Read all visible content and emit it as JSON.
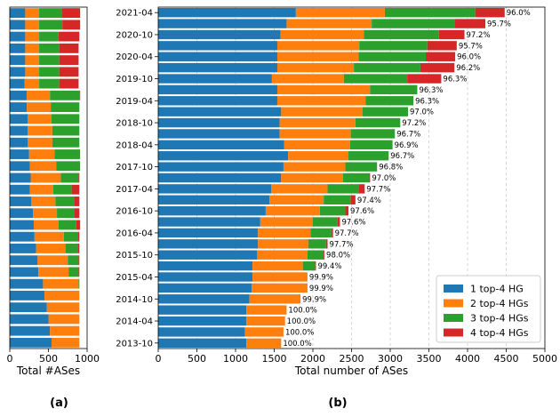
{
  "chart_data": [
    {
      "type": "bar",
      "orientation": "horizontal",
      "stacked": true,
      "xlabel": "Total #ASes",
      "xlim": [
        0,
        1000
      ],
      "xticks": [
        "0",
        "500",
        "1000"
      ],
      "panel_label": "(a)",
      "colors": [
        "#1f77b4",
        "#ff7f0e",
        "#2ca02c",
        "#d62728"
      ],
      "rows_top_to_bottom": [
        [
          200,
          180,
          290,
          240
        ],
        [
          200,
          180,
          300,
          230
        ],
        [
          200,
          180,
          250,
          270
        ],
        [
          200,
          180,
          260,
          250
        ],
        [
          200,
          180,
          260,
          250
        ],
        [
          200,
          180,
          260,
          250
        ],
        [
          190,
          190,
          260,
          250
        ],
        [
          220,
          300,
          380,
          10
        ],
        [
          220,
          310,
          370,
          0
        ],
        [
          230,
          310,
          360,
          0
        ],
        [
          230,
          320,
          350,
          0
        ],
        [
          230,
          320,
          350,
          0
        ],
        [
          250,
          330,
          330,
          0
        ],
        [
          260,
          340,
          310,
          0
        ],
        [
          270,
          390,
          230,
          10
        ],
        [
          260,
          300,
          240,
          100
        ],
        [
          280,
          310,
          240,
          70
        ],
        [
          300,
          310,
          220,
          70
        ],
        [
          310,
          320,
          230,
          50
        ],
        [
          320,
          380,
          180,
          20
        ],
        [
          340,
          380,
          160,
          20
        ],
        [
          360,
          390,
          140,
          10
        ],
        [
          370,
          390,
          130,
          10
        ],
        [
          430,
          460,
          10,
          0
        ],
        [
          450,
          450,
          0,
          0
        ],
        [
          480,
          420,
          0,
          0
        ],
        [
          500,
          400,
          0,
          0
        ],
        [
          520,
          380,
          0,
          0
        ],
        [
          540,
          360,
          0,
          0
        ]
      ]
    },
    {
      "type": "bar",
      "orientation": "horizontal",
      "stacked": true,
      "xlabel": "Total number of ASes",
      "xlim": [
        0,
        5000
      ],
      "xticks": [
        "0",
        "500",
        "1000",
        "1500",
        "2000",
        "2500",
        "3000",
        "3500",
        "4000",
        "4500",
        "5000"
      ],
      "grid": "x",
      "panel_label": "(b)",
      "legend_position": "lower-right",
      "series": [
        {
          "name": "1 top-4 HG",
          "color": "#1f77b4"
        },
        {
          "name": "2 top-4 HGs",
          "color": "#ff7f0e"
        },
        {
          "name": "3 top-4 HGs",
          "color": "#2ca02c"
        },
        {
          "name": "4 top-4 HGs",
          "color": "#d62728"
        }
      ],
      "ytick_labels": [
        "2021-04",
        "2020-10",
        "2020-04",
        "2019-10",
        "2019-04",
        "2018-10",
        "2018-04",
        "2017-10",
        "2017-04",
        "2016-10",
        "2016-04",
        "2015-10",
        "2015-04",
        "2014-10",
        "2014-04",
        "2013-10"
      ],
      "ytick_row_indices": [
        0,
        2,
        4,
        6,
        8,
        10,
        12,
        14,
        16,
        18,
        20,
        22,
        24,
        26,
        28,
        30
      ],
      "rows_top_to_bottom": [
        {
          "values": [
            1780,
            1150,
            1170,
            380
          ],
          "label": "96.0%"
        },
        {
          "values": [
            1660,
            1100,
            1070,
            400
          ],
          "label": "95.7%"
        },
        {
          "values": [
            1580,
            1080,
            970,
            330
          ],
          "label": "97.2%"
        },
        {
          "values": [
            1540,
            1060,
            880,
            380
          ],
          "label": "95.7%"
        },
        {
          "values": [
            1540,
            1050,
            870,
            380
          ],
          "label": "96.0%"
        },
        {
          "values": [
            1540,
            990,
            860,
            440
          ],
          "label": "96.2%"
        },
        {
          "values": [
            1470,
            930,
            820,
            440
          ],
          "label": "96.3%"
        },
        {
          "values": [
            1540,
            1200,
            610,
            0
          ],
          "label": "96.3%"
        },
        {
          "values": [
            1540,
            1140,
            620,
            0
          ],
          "label": "96.3%"
        },
        {
          "values": [
            1590,
            1050,
            590,
            0
          ],
          "label": "97.0%"
        },
        {
          "values": [
            1570,
            980,
            580,
            0
          ],
          "label": "97.2%"
        },
        {
          "values": [
            1570,
            920,
            570,
            0
          ],
          "label": "96.7%"
        },
        {
          "values": [
            1630,
            850,
            550,
            0
          ],
          "label": "96.9%"
        },
        {
          "values": [
            1680,
            780,
            520,
            0
          ],
          "label": "96.7%"
        },
        {
          "values": [
            1620,
            800,
            410,
            0
          ],
          "label": "96.8%"
        },
        {
          "values": [
            1590,
            800,
            340,
            10
          ],
          "label": "97.0%"
        },
        {
          "values": [
            1460,
            730,
            400,
            80
          ],
          "label": "97.7%"
        },
        {
          "values": [
            1440,
            700,
            350,
            60
          ],
          "label": "97.4%"
        },
        {
          "values": [
            1390,
            700,
            330,
            40
          ],
          "label": "97.6%"
        },
        {
          "values": [
            1320,
            680,
            320,
            30
          ],
          "label": "97.6%"
        },
        {
          "values": [
            1290,
            680,
            270,
            20
          ],
          "label": "97.7%"
        },
        {
          "values": [
            1290,
            650,
            230,
            20
          ],
          "label": "97.7%"
        },
        {
          "values": [
            1280,
            650,
            210,
            10
          ],
          "label": "98.0%"
        },
        {
          "values": [
            1220,
            650,
            160,
            10
          ],
          "label": "99.4%"
        },
        {
          "values": [
            1220,
            710,
            0,
            0
          ],
          "label": "99.9%"
        },
        {
          "values": [
            1210,
            720,
            0,
            0
          ],
          "label": "99.9%"
        },
        {
          "values": [
            1180,
            660,
            0,
            0
          ],
          "label": "99.9%"
        },
        {
          "values": [
            1140,
            520,
            0,
            0
          ],
          "label": "100.0%"
        },
        {
          "values": [
            1140,
            500,
            0,
            0
          ],
          "label": "100.0%"
        },
        {
          "values": [
            1120,
            500,
            0,
            0
          ],
          "label": "100.0%"
        },
        {
          "values": [
            1140,
            450,
            0,
            0
          ],
          "label": "100.0%"
        }
      ]
    }
  ]
}
